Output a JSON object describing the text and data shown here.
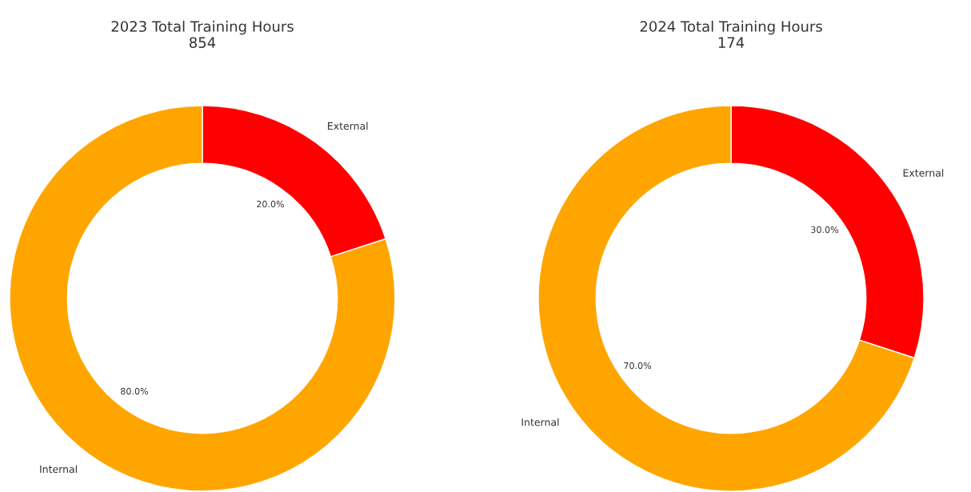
{
  "chart_data": [
    {
      "type": "donut",
      "title": "2023 Total Training Hours\n854",
      "categories": [
        "External",
        "Internal"
      ],
      "values": [
        20,
        80
      ],
      "colors": [
        "#ff0000",
        "#ffa500"
      ],
      "value_labels": [
        "20.0%",
        "80.0%"
      ]
    },
    {
      "type": "donut",
      "title": "2024 Total Training Hours\n174",
      "categories": [
        "External",
        "Internal"
      ],
      "values": [
        30,
        70
      ],
      "colors": [
        "#ff0000",
        "#ffa500"
      ],
      "value_labels": [
        "30.0%",
        "70.0%"
      ]
    }
  ]
}
